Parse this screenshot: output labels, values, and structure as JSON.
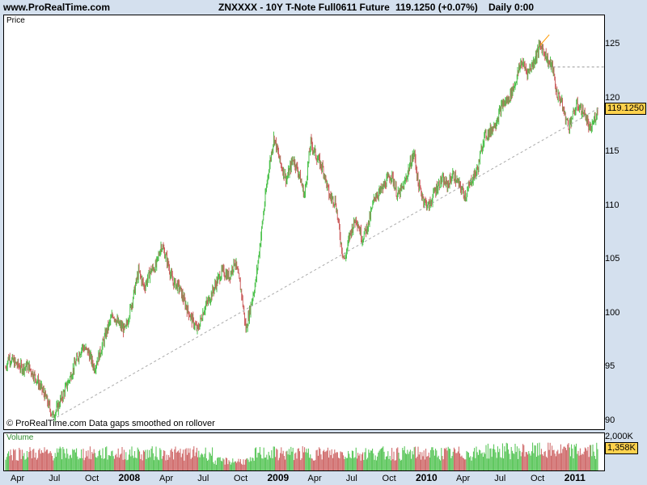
{
  "header": {
    "site": "www.ProRealTime.com",
    "title": "ZNXXXX - 10Y T-Note Full0611 Future",
    "last": "119.1250 (+0.07%)",
    "period": "Daily  0:00"
  },
  "price_panel": {
    "label": "Price",
    "footnote": "© ProRealTime.com  Data gaps smoothed on rollover",
    "last_tag": "119.1250",
    "up_color": "#4ec24e",
    "down_color": "#cc6060"
  },
  "volume_panel": {
    "label": "Volume",
    "tick_top": "2,000K",
    "last_tag": "1,358K"
  },
  "chart_data": [
    {
      "type": "line",
      "title": "ZNXXXX - 10Y T-Note Full0611 Future",
      "ylabel": "Price",
      "ylim": [
        89.3,
        127.8
      ],
      "yticks": [
        90,
        95,
        100,
        105,
        110,
        115,
        120,
        125
      ],
      "xlim": [
        "2007-03-01",
        "2011-02-28"
      ],
      "x_tick_labels": [
        {
          "date": "2007-04-01",
          "label": "Apr"
        },
        {
          "date": "2007-07-01",
          "label": "Jul"
        },
        {
          "date": "2007-10-01",
          "label": "Oct"
        },
        {
          "date": "2008-01-01",
          "label": "2008"
        },
        {
          "date": "2008-04-01",
          "label": "Apr"
        },
        {
          "date": "2008-07-01",
          "label": "Jul"
        },
        {
          "date": "2008-10-01",
          "label": "Oct"
        },
        {
          "date": "2009-01-01",
          "label": "2009"
        },
        {
          "date": "2009-04-01",
          "label": "Apr"
        },
        {
          "date": "2009-07-01",
          "label": "Jul"
        },
        {
          "date": "2009-10-01",
          "label": "Oct"
        },
        {
          "date": "2010-01-01",
          "label": "2010"
        },
        {
          "date": "2010-04-01",
          "label": "Apr"
        },
        {
          "date": "2010-07-01",
          "label": "Jul"
        },
        {
          "date": "2010-10-01",
          "label": "Oct"
        },
        {
          "date": "2011-01-01",
          "label": "2011"
        }
      ],
      "series": [
        {
          "points": [
            [
              "2007-03-01",
              95.0
            ],
            [
              "2007-03-08",
              96.0
            ],
            [
              "2007-03-22",
              95.5
            ],
            [
              "2007-04-10",
              95.0
            ],
            [
              "2007-04-25",
              95.2
            ],
            [
              "2007-05-15",
              94.0
            ],
            [
              "2007-06-05",
              92.5
            ],
            [
              "2007-06-25",
              90.5
            ],
            [
              "2007-07-05",
              91.2
            ],
            [
              "2007-07-20",
              92.5
            ],
            [
              "2007-08-05",
              94.0
            ],
            [
              "2007-08-20",
              95.5
            ],
            [
              "2007-09-05",
              97.0
            ],
            [
              "2007-09-20",
              96.5
            ],
            [
              "2007-10-05",
              95.0
            ],
            [
              "2007-10-20",
              96.5
            ],
            [
              "2007-11-05",
              98.5
            ],
            [
              "2007-11-20",
              100.0
            ],
            [
              "2007-12-05",
              99.0
            ],
            [
              "2007-12-20",
              98.5
            ],
            [
              "2008-01-05",
              101.0
            ],
            [
              "2008-01-22",
              104.0
            ],
            [
              "2008-02-05",
              102.5
            ],
            [
              "2008-02-20",
              104.0
            ],
            [
              "2008-03-05",
              104.5
            ],
            [
              "2008-03-18",
              106.5
            ],
            [
              "2008-04-01",
              105.0
            ],
            [
              "2008-04-15",
              103.0
            ],
            [
              "2008-05-01",
              102.5
            ],
            [
              "2008-05-15",
              101.0
            ],
            [
              "2008-06-01",
              99.5
            ],
            [
              "2008-06-15",
              98.5
            ],
            [
              "2008-07-01",
              100.5
            ],
            [
              "2008-07-15",
              101.5
            ],
            [
              "2008-08-01",
              103.0
            ],
            [
              "2008-08-15",
              104.0
            ],
            [
              "2008-09-01",
              103.5
            ],
            [
              "2008-09-15",
              105.0
            ],
            [
              "2008-10-01",
              102.0
            ],
            [
              "2008-10-12",
              98.5
            ],
            [
              "2008-10-22",
              100.5
            ],
            [
              "2008-11-05",
              103.0
            ],
            [
              "2008-11-20",
              108.0
            ],
            [
              "2008-12-05",
              113.0
            ],
            [
              "2008-12-20",
              116.5
            ],
            [
              "2009-01-05",
              114.0
            ],
            [
              "2009-01-20",
              112.5
            ],
            [
              "2009-02-05",
              114.5
            ],
            [
              "2009-02-20",
              113.0
            ],
            [
              "2009-03-05",
              111.0
            ],
            [
              "2009-03-20",
              116.0
            ],
            [
              "2009-04-05",
              114.5
            ],
            [
              "2009-04-20",
              113.5
            ],
            [
              "2009-05-05",
              111.0
            ],
            [
              "2009-05-20",
              110.5
            ],
            [
              "2009-06-05",
              106.0
            ],
            [
              "2009-06-12",
              105.0
            ],
            [
              "2009-06-25",
              107.5
            ],
            [
              "2009-07-10",
              109.0
            ],
            [
              "2009-07-25",
              107.0
            ],
            [
              "2009-08-10",
              108.5
            ],
            [
              "2009-08-25",
              111.0
            ],
            [
              "2009-09-10",
              111.5
            ],
            [
              "2009-09-25",
              112.5
            ],
            [
              "2009-10-05",
              113.0
            ],
            [
              "2009-10-20",
              111.0
            ],
            [
              "2009-11-05",
              112.0
            ],
            [
              "2009-11-20",
              114.0
            ],
            [
              "2009-11-30",
              115.0
            ],
            [
              "2009-12-10",
              112.0
            ],
            [
              "2009-12-25",
              110.5
            ],
            [
              "2010-01-05",
              110.0
            ],
            [
              "2010-01-20",
              111.5
            ],
            [
              "2010-02-05",
              112.5
            ],
            [
              "2010-02-20",
              112.0
            ],
            [
              "2010-03-05",
              113.0
            ],
            [
              "2010-03-20",
              112.0
            ],
            [
              "2010-04-05",
              111.0
            ],
            [
              "2010-04-20",
              112.5
            ],
            [
              "2010-05-05",
              113.5
            ],
            [
              "2010-05-20",
              116.5
            ],
            [
              "2010-06-05",
              117.0
            ],
            [
              "2010-06-20",
              118.0
            ],
            [
              "2010-07-05",
              119.5
            ],
            [
              "2010-07-20",
              120.0
            ],
            [
              "2010-08-05",
              121.5
            ],
            [
              "2010-08-20",
              123.5
            ],
            [
              "2010-09-05",
              122.5
            ],
            [
              "2010-09-20",
              123.5
            ],
            [
              "2010-10-05",
              125.0
            ],
            [
              "2010-10-15",
              124.5
            ],
            [
              "2010-10-25",
              123.5
            ],
            [
              "2010-11-05",
              123.0
            ],
            [
              "2010-11-15",
              120.5
            ],
            [
              "2010-11-25",
              120.0
            ],
            [
              "2010-12-05",
              118.5
            ],
            [
              "2010-12-15",
              117.5
            ],
            [
              "2010-12-25",
              118.5
            ],
            [
              "2011-01-05",
              119.5
            ],
            [
              "2011-01-15",
              119.0
            ],
            [
              "2011-01-25",
              118.5
            ],
            [
              "2011-02-05",
              117.0
            ],
            [
              "2011-02-15",
              118.0
            ],
            [
              "2011-02-25",
              119.1
            ]
          ]
        }
      ],
      "annotations": {
        "support_trendline": [
          [
            "2007-06-25",
            90.2
          ],
          [
            "2011-02-28",
            119.2
          ]
        ],
        "resistance_segment": [
          [
            "2010-10-05",
            125.0
          ],
          [
            "2010-10-28",
            126.0
          ]
        ],
        "horizontal_level": {
          "from": "2010-10-25",
          "y": 123.0
        }
      }
    },
    {
      "type": "bar",
      "ylabel": "Volume",
      "ylim_k": [
        0,
        2300
      ],
      "last_value_k": 1358,
      "typical_range_k": [
        900,
        2000
      ]
    }
  ]
}
